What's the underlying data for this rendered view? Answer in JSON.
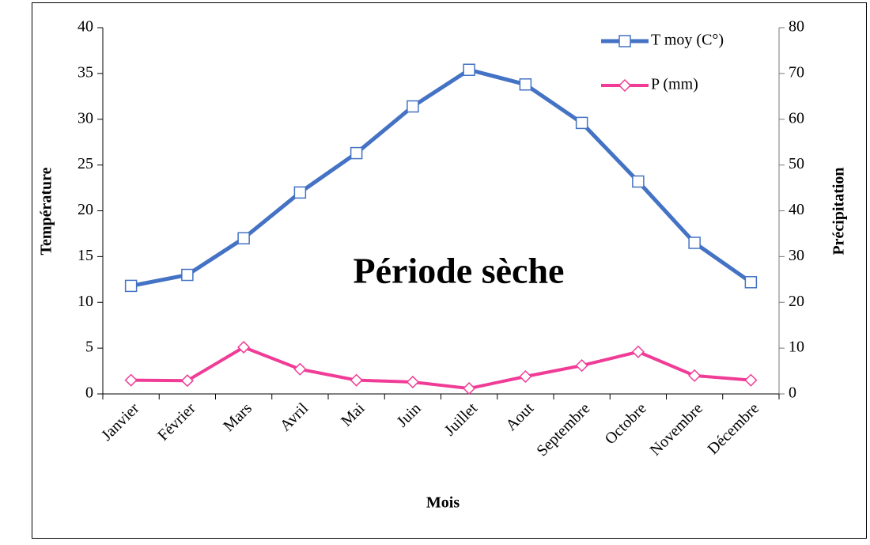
{
  "chart_data": {
    "type": "line",
    "categories": [
      "Janvier",
      "Février",
      "Mars",
      "Avril",
      "Mai",
      "Juin",
      "Juillet",
      "Aout",
      "Septembre",
      "Octobre",
      "Novembre",
      "Décembre"
    ],
    "series": [
      {
        "name": "T moy (C°)",
        "color": "#4472c4",
        "marker": "square",
        "values": [
          11.8,
          13.0,
          17.0,
          22.0,
          26.3,
          31.4,
          35.4,
          33.8,
          29.6,
          23.2,
          16.5,
          12.2
        ]
      },
      {
        "name": "P (mm)",
        "color": "#f03c96",
        "marker": "diamond",
        "axis": "y2",
        "values": [
          3.0,
          2.9,
          10.2,
          5.4,
          3.0,
          2.6,
          1.2,
          3.8,
          6.2,
          9.2,
          4.0,
          3.0
        ]
      }
    ],
    "xlabel": "Mois",
    "ylabel": "Température",
    "y2label": "Précipitation",
    "annotation": "Période sèche",
    "ylim": [
      0,
      40
    ],
    "yticks": [
      0,
      5,
      10,
      15,
      20,
      25,
      30,
      35,
      40
    ],
    "y2lim": [
      0,
      80
    ],
    "y2ticks": [
      0,
      10,
      20,
      30,
      40,
      50,
      60,
      70,
      80
    ],
    "legend": "upper right",
    "grid": false
  }
}
